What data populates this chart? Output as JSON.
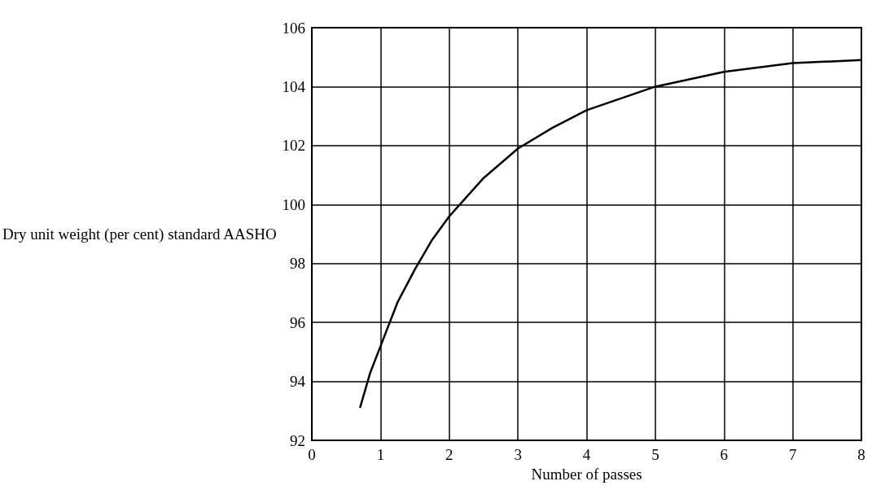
{
  "chart_data": {
    "type": "line",
    "xlabel": "Number of passes",
    "ylabel": "Dry unit weight (per cent) standard AASHO",
    "x": [
      0.7,
      0.85,
      1,
      1.25,
      1.5,
      1.75,
      2,
      2.5,
      3,
      3.5,
      4,
      4.5,
      5,
      6,
      7,
      8
    ],
    "series": [
      {
        "color": "#000000",
        "values": [
          93.1,
          94.3,
          95.2,
          96.7,
          97.8,
          98.8,
          99.6,
          100.9,
          101.9,
          102.6,
          103.2,
          103.6,
          104.0,
          104.5,
          104.8,
          104.9
        ]
      }
    ],
    "xlim": [
      0,
      8
    ],
    "xticks": [
      0,
      1,
      2,
      3,
      4,
      5,
      6,
      7,
      8
    ],
    "ylim": [
      92,
      106
    ],
    "yticks": [
      92,
      94,
      96,
      98,
      100,
      102,
      104,
      106
    ],
    "grid": true,
    "marker": "none",
    "line_style": "solid"
  }
}
